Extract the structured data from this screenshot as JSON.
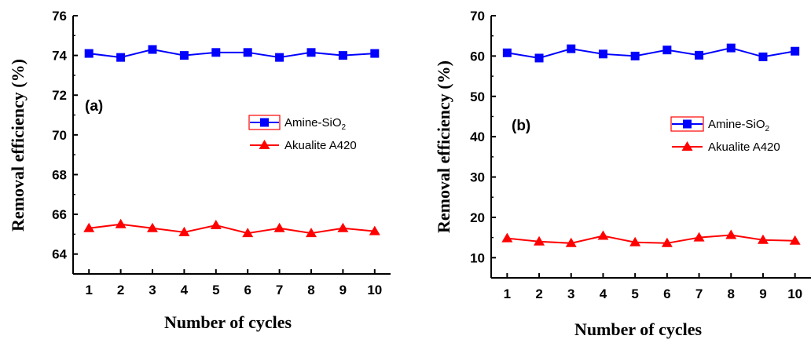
{
  "chart_data": [
    {
      "type": "line",
      "panel_label": "(a)",
      "x": [
        1,
        2,
        3,
        4,
        5,
        6,
        7,
        8,
        9,
        10
      ],
      "series": [
        {
          "name": "Amine-SiO",
          "name_subscript": "2",
          "color": "#0000ff",
          "marker": "square",
          "values": [
            74.1,
            73.9,
            74.3,
            74.0,
            74.15,
            74.15,
            73.9,
            74.15,
            74.0,
            74.1
          ]
        },
        {
          "name": "Akualite A420",
          "color": "#ff0000",
          "marker": "triangle",
          "values": [
            65.3,
            65.5,
            65.3,
            65.1,
            65.45,
            65.05,
            65.3,
            65.05,
            65.3,
            65.15
          ]
        }
      ],
      "xlabel": "Number of cycles",
      "ylabel": "Removal efficiency (%)",
      "xticks": [
        "1",
        "2",
        "3",
        "4",
        "5",
        "6",
        "7",
        "8",
        "9",
        "10"
      ],
      "yticks": [
        "64",
        "66",
        "68",
        "70",
        "72",
        "74",
        "76"
      ],
      "xlim": [
        0.5,
        10.5
      ],
      "ylim": [
        63,
        76
      ],
      "grid": false,
      "legend_position": "center-right"
    },
    {
      "type": "line",
      "panel_label": "(b)",
      "x": [
        1,
        2,
        3,
        4,
        5,
        6,
        7,
        8,
        9,
        10
      ],
      "series": [
        {
          "name": "Amine-SiO",
          "name_subscript": "2",
          "color": "#0000ff",
          "marker": "square",
          "values": [
            60.8,
            59.5,
            61.8,
            60.5,
            60.0,
            61.5,
            60.2,
            62.0,
            59.8,
            61.2
          ]
        },
        {
          "name": "Akualite A420",
          "color": "#ff0000",
          "marker": "triangle",
          "values": [
            14.8,
            14.0,
            13.6,
            15.4,
            13.8,
            13.6,
            15.0,
            15.6,
            14.4,
            14.2
          ]
        }
      ],
      "xlabel": "Number of cycles",
      "ylabel": "Removal efficiency (%)",
      "xticks": [
        "1",
        "2",
        "3",
        "4",
        "5",
        "6",
        "7",
        "8",
        "9",
        "10"
      ],
      "yticks": [
        "10",
        "20",
        "30",
        "40",
        "50",
        "60",
        "70"
      ],
      "xlim": [
        0.5,
        10.5
      ],
      "ylim": [
        5,
        70
      ],
      "grid": false,
      "legend_position": "center-right"
    }
  ]
}
